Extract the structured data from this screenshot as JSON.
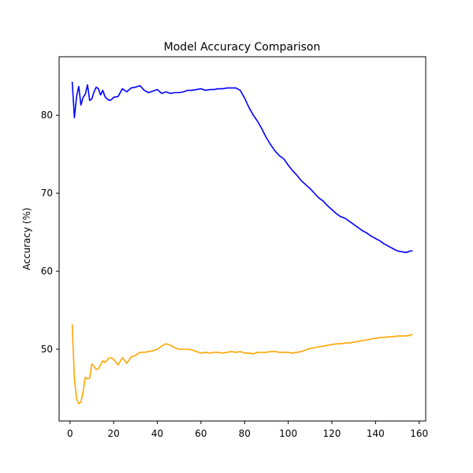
{
  "chart_data": {
    "type": "line",
    "title": "Model Accuracy Comparison",
    "xlabel": "",
    "ylabel": "Accuracy (%)",
    "xlim": [
      -5,
      163
    ],
    "ylim": [
      40.8,
      87.5
    ],
    "xticks": [
      0,
      20,
      40,
      60,
      80,
      100,
      120,
      140,
      160
    ],
    "yticks": [
      50,
      60,
      70,
      80
    ],
    "grid": false,
    "series": [
      {
        "color": "#0000ff",
        "x": [
          1,
          2,
          3,
          4,
          5,
          6,
          7,
          8,
          9,
          10,
          11,
          12,
          13,
          14,
          15,
          16,
          17,
          18,
          19,
          20,
          22,
          24,
          26,
          28,
          30,
          32,
          34,
          36,
          38,
          40,
          42,
          44,
          46,
          48,
          50,
          52,
          54,
          56,
          58,
          60,
          62,
          64,
          66,
          68,
          70,
          72,
          74,
          76,
          78,
          80,
          82,
          84,
          86,
          88,
          90,
          92,
          94,
          96,
          98,
          100,
          102,
          104,
          106,
          108,
          110,
          112,
          114,
          116,
          118,
          120,
          122,
          124,
          126,
          128,
          130,
          132,
          134,
          136,
          138,
          140,
          142,
          144,
          146,
          148,
          150,
          152,
          154,
          156,
          157
        ],
        "y": [
          84.3,
          79.7,
          82.4,
          83.7,
          81.3,
          82.3,
          82.7,
          83.9,
          81.9,
          82.1,
          83.0,
          83.6,
          83.4,
          82.6,
          83.2,
          82.4,
          82.1,
          81.9,
          82.0,
          82.3,
          82.4,
          83.4,
          83.0,
          83.5,
          83.6,
          83.8,
          83.2,
          82.9,
          83.1,
          83.3,
          82.8,
          83.0,
          82.8,
          82.9,
          82.9,
          83.0,
          83.2,
          83.2,
          83.3,
          83.4,
          83.2,
          83.3,
          83.3,
          83.4,
          83.4,
          83.5,
          83.5,
          83.5,
          83.2,
          82.2,
          81.0,
          80.0,
          79.2,
          78.2,
          77.1,
          76.2,
          75.4,
          74.8,
          74.4,
          73.6,
          72.9,
          72.3,
          71.6,
          71.1,
          70.6,
          70.0,
          69.4,
          69.0,
          68.4,
          67.9,
          67.4,
          67.0,
          66.8,
          66.4,
          66.0,
          65.6,
          65.2,
          64.9,
          64.5,
          64.2,
          63.9,
          63.5,
          63.2,
          62.9,
          62.6,
          62.5,
          62.4,
          62.6,
          62.6
        ]
      },
      {
        "color": "#ffa500",
        "x": [
          1,
          2,
          3,
          4,
          5,
          6,
          7,
          8,
          9,
          10,
          11,
          12,
          13,
          14,
          15,
          16,
          17,
          18,
          19,
          20,
          22,
          24,
          26,
          28,
          30,
          32,
          34,
          36,
          38,
          40,
          42,
          44,
          46,
          48,
          50,
          52,
          54,
          56,
          58,
          60,
          62,
          64,
          66,
          68,
          70,
          72,
          74,
          76,
          78,
          80,
          82,
          84,
          86,
          88,
          90,
          92,
          94,
          96,
          98,
          100,
          102,
          104,
          106,
          108,
          110,
          112,
          114,
          116,
          118,
          120,
          122,
          124,
          126,
          128,
          130,
          132,
          134,
          136,
          138,
          140,
          142,
          144,
          146,
          148,
          150,
          152,
          154,
          156,
          157
        ],
        "y": [
          53.2,
          46.2,
          43.7,
          43.0,
          43.2,
          44.6,
          46.4,
          46.2,
          46.3,
          48.1,
          47.8,
          47.4,
          47.5,
          48.0,
          48.5,
          48.3,
          48.6,
          48.9,
          48.9,
          48.7,
          48.0,
          48.9,
          48.2,
          49.0,
          49.2,
          49.6,
          49.6,
          49.7,
          49.8,
          50.0,
          50.4,
          50.7,
          50.5,
          50.2,
          50.0,
          50.0,
          50.0,
          49.9,
          49.7,
          49.5,
          49.6,
          49.5,
          49.6,
          49.6,
          49.5,
          49.6,
          49.7,
          49.6,
          49.7,
          49.5,
          49.5,
          49.4,
          49.6,
          49.6,
          49.6,
          49.7,
          49.7,
          49.6,
          49.6,
          49.6,
          49.5,
          49.6,
          49.7,
          49.9,
          50.1,
          50.2,
          50.3,
          50.4,
          50.5,
          50.6,
          50.7,
          50.7,
          50.8,
          50.8,
          50.9,
          51.0,
          51.1,
          51.2,
          51.3,
          51.4,
          51.5,
          51.5,
          51.6,
          51.6,
          51.7,
          51.7,
          51.7,
          51.8,
          51.9
        ]
      }
    ]
  }
}
